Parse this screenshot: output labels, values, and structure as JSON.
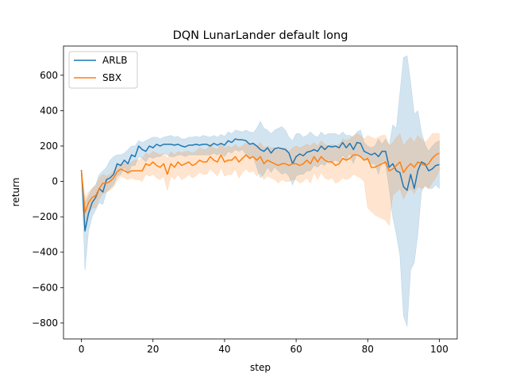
{
  "chart_data": {
    "type": "line",
    "title": "DQN LunarLander default long",
    "xlabel": "step",
    "ylabel": "return",
    "xlim": [
      -5,
      105
    ],
    "ylim": [
      -890,
      765
    ],
    "xticks": [
      0,
      20,
      40,
      60,
      80,
      100
    ],
    "yticks": [
      -800,
      -600,
      -400,
      -200,
      0,
      200,
      400,
      600
    ],
    "xtick_labels": [
      "0",
      "20",
      "40",
      "60",
      "80",
      "100"
    ],
    "ytick_labels": [
      "−800",
      "−600",
      "−400",
      "−200",
      "0",
      "200",
      "400",
      "600"
    ],
    "legend_position": "top-left",
    "grid": false,
    "x": [
      0,
      1,
      2,
      3,
      4,
      5,
      6,
      7,
      8,
      9,
      10,
      11,
      12,
      13,
      14,
      15,
      16,
      17,
      18,
      19,
      20,
      21,
      22,
      23,
      24,
      25,
      26,
      27,
      28,
      29,
      30,
      31,
      32,
      33,
      34,
      35,
      36,
      37,
      38,
      39,
      40,
      41,
      42,
      43,
      44,
      45,
      46,
      47,
      48,
      49,
      50,
      51,
      52,
      53,
      54,
      55,
      56,
      57,
      58,
      59,
      60,
      61,
      62,
      63,
      64,
      65,
      66,
      67,
      68,
      69,
      70,
      71,
      72,
      73,
      74,
      75,
      76,
      77,
      78,
      79,
      80,
      81,
      82,
      83,
      84,
      85,
      86,
      87,
      88,
      89,
      90,
      91,
      92,
      93,
      94,
      95,
      96,
      97,
      98,
      99,
      100
    ],
    "series": [
      {
        "name": "ARLB",
        "color": "#1f77b4",
        "values": [
          65,
          -280,
          -180,
          -120,
          -90,
          -40,
          -60,
          10,
          20,
          40,
          100,
          90,
          120,
          100,
          150,
          140,
          200,
          180,
          170,
          200,
          190,
          210,
          200,
          210,
          210,
          210,
          205,
          210,
          200,
          195,
          205,
          205,
          210,
          205,
          210,
          210,
          200,
          215,
          205,
          215,
          205,
          230,
          220,
          240,
          235,
          235,
          230,
          210,
          215,
          200,
          180,
          170,
          190,
          160,
          185,
          190,
          185,
          180,
          160,
          100,
          140,
          155,
          145,
          165,
          170,
          180,
          170,
          200,
          180,
          200,
          195,
          200,
          190,
          220,
          190,
          215,
          180,
          220,
          215,
          170,
          160,
          150,
          160,
          140,
          170,
          170,
          80,
          100,
          60,
          50,
          -30,
          -50,
          40,
          -40,
          60,
          110,
          100,
          60,
          70,
          90,
          95
        ],
        "upper": [
          65,
          -120,
          -80,
          -40,
          -20,
          40,
          60,
          80,
          120,
          140,
          150,
          150,
          160,
          180,
          200,
          200,
          230,
          220,
          230,
          240,
          250,
          250,
          240,
          250,
          255,
          260,
          250,
          255,
          240,
          240,
          250,
          250,
          255,
          250,
          260,
          255,
          250,
          260,
          250,
          265,
          255,
          280,
          270,
          290,
          285,
          280,
          290,
          280,
          275,
          300,
          340,
          300,
          290,
          270,
          290,
          300,
          310,
          290,
          250,
          230,
          270,
          270,
          250,
          260,
          280,
          260,
          250,
          280,
          260,
          270,
          270,
          270,
          260,
          280,
          260,
          260,
          250,
          280,
          290,
          220,
          200,
          190,
          200,
          240,
          210,
          240,
          200,
          320,
          300,
          500,
          700,
          710,
          560,
          380,
          400,
          280,
          210,
          170,
          200,
          220,
          230
        ],
        "lower": [
          65,
          -500,
          -280,
          -200,
          -160,
          -120,
          -130,
          -60,
          -40,
          -20,
          30,
          40,
          80,
          40,
          90,
          90,
          140,
          130,
          110,
          140,
          130,
          140,
          140,
          160,
          150,
          140,
          140,
          150,
          150,
          140,
          150,
          150,
          150,
          150,
          150,
          150,
          150,
          160,
          150,
          160,
          140,
          170,
          160,
          180,
          170,
          180,
          150,
          130,
          140,
          80,
          20,
          40,
          80,
          50,
          80,
          60,
          40,
          50,
          30,
          -20,
          30,
          40,
          40,
          60,
          60,
          90,
          80,
          100,
          90,
          120,
          110,
          120,
          110,
          150,
          120,
          160,
          100,
          160,
          140,
          120,
          120,
          100,
          100,
          40,
          120,
          90,
          -40,
          -200,
          -300,
          -420,
          -760,
          -820,
          -500,
          -460,
          -300,
          -60,
          -20,
          -40,
          -40,
          -20,
          -40
        ]
      },
      {
        "name": "SBX",
        "color": "#ff7f0e",
        "values": [
          65,
          -175,
          -120,
          -90,
          -80,
          -40,
          -10,
          -10,
          0,
          20,
          55,
          70,
          60,
          50,
          60,
          60,
          60,
          60,
          100,
          90,
          110,
          90,
          80,
          100,
          40,
          100,
          80,
          110,
          90,
          100,
          110,
          90,
          100,
          120,
          110,
          110,
          140,
          120,
          110,
          150,
          110,
          120,
          120,
          140,
          110,
          130,
          150,
          130,
          140,
          120,
          140,
          100,
          120,
          110,
          100,
          90,
          100,
          100,
          90,
          100,
          100,
          90,
          100,
          120,
          100,
          140,
          110,
          140,
          120,
          110,
          110,
          90,
          100,
          130,
          120,
          130,
          150,
          150,
          140,
          120,
          130,
          80,
          80,
          90,
          100,
          110,
          60,
          70,
          90,
          110,
          50,
          80,
          100,
          80,
          110,
          100,
          90,
          100,
          130,
          150,
          160
        ],
        "upper": [
          65,
          -90,
          -60,
          -40,
          -20,
          20,
          40,
          30,
          40,
          60,
          90,
          100,
          100,
          100,
          110,
          120,
          120,
          130,
          160,
          150,
          170,
          160,
          150,
          160,
          130,
          170,
          150,
          170,
          160,
          170,
          170,
          160,
          170,
          190,
          180,
          180,
          210,
          190,
          180,
          220,
          190,
          200,
          190,
          210,
          190,
          200,
          220,
          200,
          210,
          200,
          220,
          190,
          200,
          190,
          190,
          180,
          190,
          190,
          170,
          190,
          200,
          190,
          200,
          210,
          200,
          220,
          200,
          230,
          210,
          200,
          210,
          200,
          210,
          240,
          230,
          240,
          260,
          270,
          260,
          240,
          260,
          250,
          240,
          250,
          260,
          260,
          200,
          220,
          250,
          270,
          200,
          230,
          250,
          220,
          260,
          240,
          220,
          240,
          270,
          270,
          270
        ],
        "lower": [
          65,
          -260,
          -190,
          -150,
          -150,
          -100,
          -70,
          -60,
          -50,
          -30,
          10,
          30,
          20,
          10,
          20,
          10,
          10,
          0,
          40,
          30,
          40,
          20,
          10,
          30,
          -50,
          30,
          10,
          40,
          10,
          20,
          40,
          20,
          30,
          50,
          40,
          40,
          70,
          50,
          30,
          80,
          30,
          40,
          40,
          70,
          20,
          50,
          70,
          50,
          60,
          30,
          50,
          10,
          30,
          20,
          10,
          -10,
          10,
          0,
          0,
          10,
          10,
          -10,
          0,
          20,
          -10,
          50,
          10,
          50,
          20,
          10,
          20,
          -10,
          0,
          20,
          10,
          20,
          40,
          30,
          20,
          0,
          -150,
          -170,
          -190,
          -200,
          -210,
          -220,
          -250,
          -80,
          -60,
          -40,
          -100,
          -60,
          -40,
          -70,
          -30,
          -40,
          -30,
          -40,
          -10,
          20,
          60
        ]
      }
    ]
  }
}
